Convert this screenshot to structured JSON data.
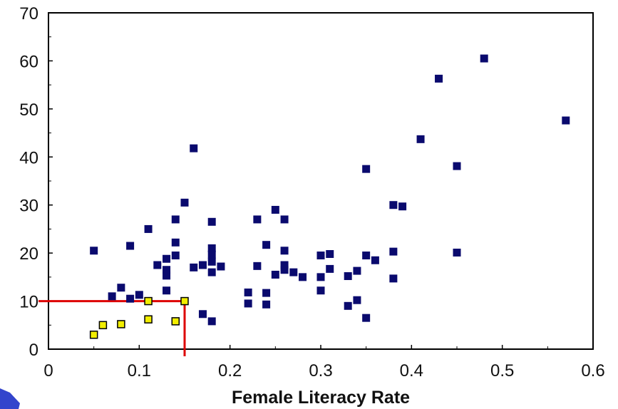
{
  "chart_data": {
    "type": "scatter",
    "title": "",
    "xlabel": "Female Literacy Rate",
    "ylabel": "",
    "xlim": [
      0,
      0.6
    ],
    "ylim": [
      0,
      70
    ],
    "x_ticks": [
      "0",
      "0.1",
      "0.2",
      "0.3",
      "0.4",
      "0.5",
      "0.6"
    ],
    "y_ticks": [
      "0",
      "10",
      "20",
      "30",
      "40",
      "50",
      "60",
      "70"
    ],
    "grid": false,
    "legend": "none",
    "colors": {
      "main_series": "#0a0a6e",
      "highlight_series": "#f2ee00",
      "reference_lines": "#dd0000"
    },
    "reference_lines": {
      "x": 0.15,
      "y": 10
    },
    "series": [
      {
        "marker": "dark-square",
        "points": [
          [
            0.05,
            20.5
          ],
          [
            0.07,
            11
          ],
          [
            0.08,
            12.8
          ],
          [
            0.09,
            21.5
          ],
          [
            0.09,
            10.5
          ],
          [
            0.1,
            11.3
          ],
          [
            0.11,
            25
          ],
          [
            0.12,
            17.5
          ],
          [
            0.13,
            18.8
          ],
          [
            0.13,
            16.5
          ],
          [
            0.13,
            15.3
          ],
          [
            0.13,
            12.2
          ],
          [
            0.14,
            27
          ],
          [
            0.14,
            22.2
          ],
          [
            0.14,
            19.5
          ],
          [
            0.15,
            30.5
          ],
          [
            0.16,
            41.8
          ],
          [
            0.16,
            17
          ],
          [
            0.17,
            17.5
          ],
          [
            0.17,
            7.3
          ],
          [
            0.18,
            26.5
          ],
          [
            0.18,
            21
          ],
          [
            0.18,
            19.7
          ],
          [
            0.18,
            18.2
          ],
          [
            0.18,
            16
          ],
          [
            0.18,
            5.8
          ],
          [
            0.19,
            17.2
          ],
          [
            0.22,
            11.8
          ],
          [
            0.22,
            9.5
          ],
          [
            0.23,
            27
          ],
          [
            0.23,
            17.3
          ],
          [
            0.24,
            21.7
          ],
          [
            0.24,
            11.7
          ],
          [
            0.24,
            9.3
          ],
          [
            0.25,
            29
          ],
          [
            0.25,
            15.5
          ],
          [
            0.26,
            27
          ],
          [
            0.26,
            20.5
          ],
          [
            0.26,
            17.5
          ],
          [
            0.26,
            16.5
          ],
          [
            0.27,
            16
          ],
          [
            0.28,
            15
          ],
          [
            0.3,
            19.5
          ],
          [
            0.3,
            15
          ],
          [
            0.3,
            12.2
          ],
          [
            0.31,
            19.8
          ],
          [
            0.31,
            16.7
          ],
          [
            0.33,
            15.2
          ],
          [
            0.33,
            9
          ],
          [
            0.34,
            16.3
          ],
          [
            0.34,
            10.2
          ],
          [
            0.35,
            37.5
          ],
          [
            0.35,
            19.5
          ],
          [
            0.35,
            6.5
          ],
          [
            0.36,
            18.5
          ],
          [
            0.38,
            30
          ],
          [
            0.38,
            20.3
          ],
          [
            0.38,
            14.7
          ],
          [
            0.39,
            29.7
          ],
          [
            0.41,
            43.7
          ],
          [
            0.43,
            56.3
          ],
          [
            0.45,
            38.1
          ],
          [
            0.45,
            20.1
          ],
          [
            0.48,
            60.5
          ],
          [
            0.57,
            47.6
          ]
        ]
      },
      {
        "marker": "yellow-square",
        "points": [
          [
            0.05,
            3
          ],
          [
            0.06,
            5
          ],
          [
            0.08,
            5.2
          ],
          [
            0.11,
            10
          ],
          [
            0.11,
            6.2
          ],
          [
            0.14,
            5.8
          ],
          [
            0.15,
            10
          ]
        ]
      }
    ]
  }
}
